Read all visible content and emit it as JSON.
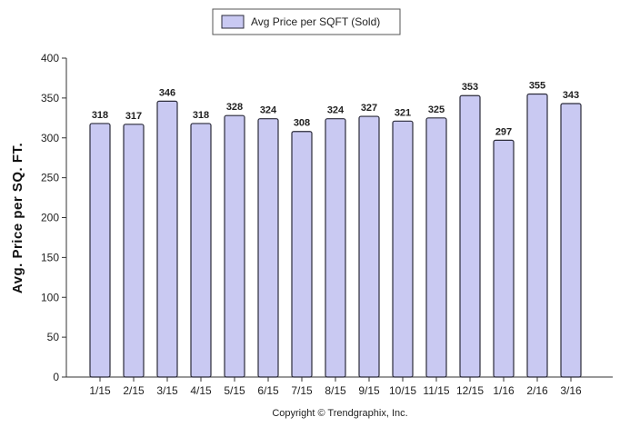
{
  "chart_data": {
    "type": "bar",
    "categories": [
      "1/15",
      "2/15",
      "3/15",
      "4/15",
      "5/15",
      "6/15",
      "7/15",
      "8/15",
      "9/15",
      "10/15",
      "11/15",
      "12/15",
      "1/16",
      "2/16",
      "3/16"
    ],
    "series": [
      {
        "name": "Avg Price per SQFT (Sold)",
        "values": [
          318,
          317,
          346,
          318,
          328,
          324,
          308,
          324,
          327,
          321,
          325,
          353,
          297,
          355,
          343
        ]
      }
    ],
    "ylabel": "Avg. Price per SQ. FT.",
    "xlabel": "",
    "ylim": [
      0,
      400
    ],
    "yticks": [
      0,
      50,
      100,
      150,
      200,
      250,
      300,
      350,
      400
    ],
    "grid": false,
    "legend_position": "top-center",
    "data_labels": true,
    "colors": {
      "bar_fill": "#c9c9f2",
      "bar_stroke": "#2b2b3a",
      "axis": "#333333",
      "legend_border": "#555555"
    }
  },
  "footer": {
    "copyright": "Copyright © Trendgraphix, Inc."
  }
}
